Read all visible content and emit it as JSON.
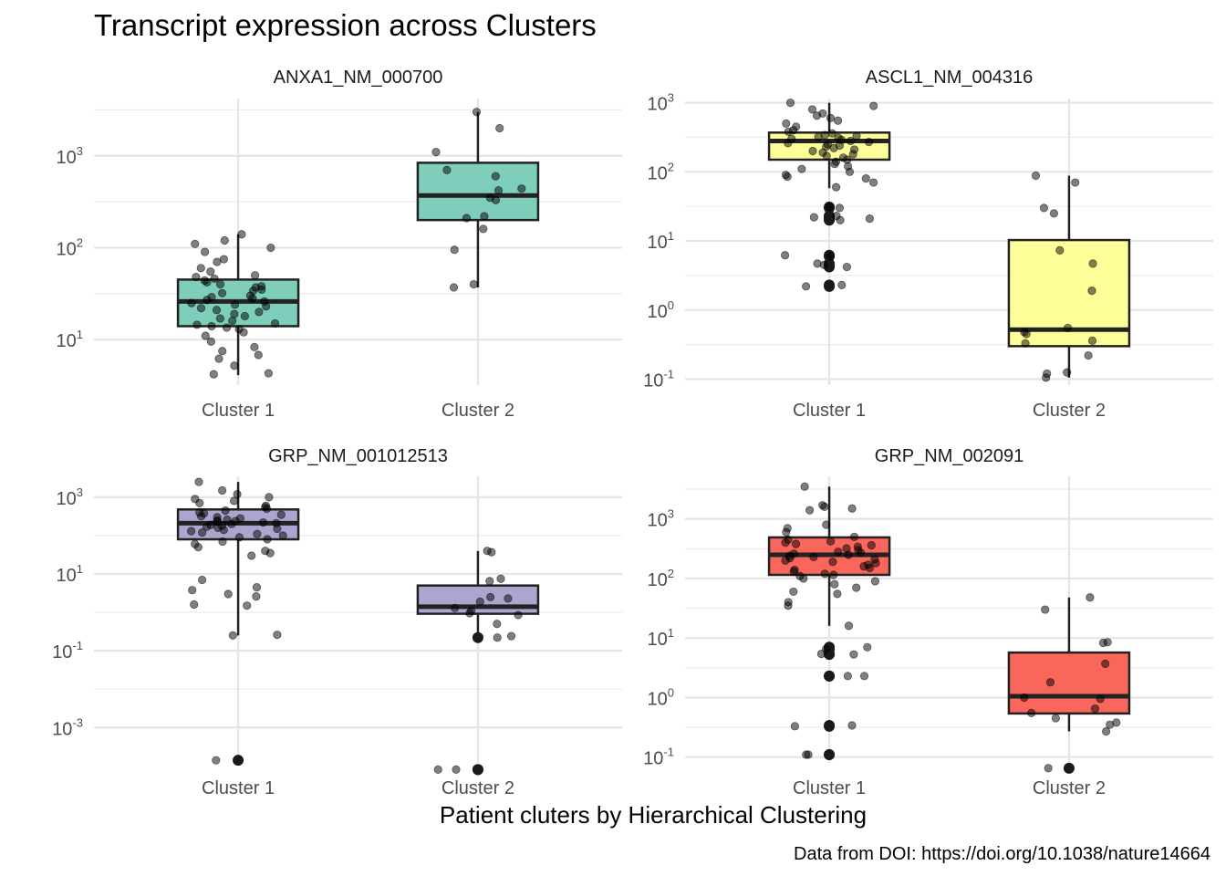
{
  "chart_data": {
    "type": "box",
    "title": "Transcript expression across Clusters",
    "xlabel": "Patient cluters by Hierarchical Clustering",
    "ylabel": "",
    "caption": "Data from DOI: https://doi.org/10.1038/nature14664",
    "y_scale": "log10",
    "categories": [
      "Cluster 1",
      "Cluster 2"
    ],
    "panels": [
      {
        "name": "ANXA1_NM_000700",
        "fill": "#7fcdbb",
        "ylim": [
          3.2,
          4200
        ],
        "y_ticks": [
          {
            "exp": "1",
            "value": 10
          },
          {
            "exp": "2",
            "value": 100
          },
          {
            "exp": "3",
            "value": 1000
          }
        ],
        "boxes": [
          {
            "category": "Cluster 1",
            "whisker_low": 4.1,
            "q1": 14,
            "median": 26,
            "q3": 45,
            "whisker_high": 140,
            "points": [
              4.2,
              4.3,
              5.2,
              6.2,
              6.8,
              7.5,
              8.3,
              9.5,
              11,
              12,
              13,
              13.5,
              14,
              14.5,
              15,
              16,
              17,
              18,
              19,
              20,
              21,
              22,
              23,
              24,
              25,
              26,
              27,
              28,
              29,
              30,
              32,
              34,
              35,
              37,
              38,
              40,
              42,
              44,
              46,
              48,
              50,
              55,
              60,
              70,
              75,
              90,
              100,
              110,
              120,
              140
            ]
          },
          {
            "category": "Cluster 2",
            "whisker_low": 37,
            "q1": 200,
            "median": 370,
            "q3": 840,
            "whisker_high": 3000,
            "points": [
              37,
              40,
              95,
              160,
              210,
              220,
              330,
              350,
              420,
              440,
              600,
              700,
              1100,
              2000,
              3000
            ]
          }
        ]
      },
      {
        "name": "ASCL1_NM_004316",
        "fill": "#ffff99",
        "ylim": [
          0.082,
          1150
        ],
        "y_ticks": [
          {
            "exp": "-1",
            "value": 0.1
          },
          {
            "exp": "0",
            "value": 1
          },
          {
            "exp": "1",
            "value": 10
          },
          {
            "exp": "2",
            "value": 100
          },
          {
            "exp": "3",
            "value": 1000
          }
        ],
        "boxes": [
          {
            "category": "Cluster 1",
            "whisker_low": 58,
            "q1": 150,
            "median": 280,
            "q3": 370,
            "whisker_high": 1000,
            "points": [
              2.2,
              2.3,
              4.2,
              4.5,
              4.7,
              6,
              6.2,
              20,
              21,
              22,
              23,
              30,
              31,
              60,
              70,
              80,
              85,
              90,
              100,
              110,
              120,
              130,
              140,
              150,
              160,
              170,
              180,
              190,
              200,
              210,
              220,
              230,
              240,
              250,
              260,
              270,
              280,
              290,
              300,
              310,
              320,
              330,
              340,
              360,
              380,
              400,
              450,
              500,
              550,
              600,
              650,
              700,
              800,
              900,
              1000
            ]
          },
          {
            "category": "Cluster 2",
            "whisker_low": 0.105,
            "q1": 0.3,
            "median": 0.52,
            "q3": 10.3,
            "whisker_high": 88,
            "points": [
              0.105,
              0.12,
              0.125,
              0.22,
              0.33,
              0.36,
              0.45,
              0.48,
              0.55,
              1.9,
              4.7,
              7.3,
              25,
              30,
              70,
              88
            ]
          }
        ]
      },
      {
        "name": "GRP_NM_001012513",
        "fill": "#aaa6d0",
        "ylim": [
          0.00012,
          3500
        ],
        "y_ticks": [
          {
            "exp": "-3",
            "value": 0.001
          },
          {
            "exp": "-1",
            "value": 0.1
          },
          {
            "exp": "1",
            "value": 10
          },
          {
            "exp": "3",
            "value": 1000
          }
        ],
        "boxes": [
          {
            "category": "Cluster 1",
            "whisker_low": 0.25,
            "q1": 80,
            "median": 210,
            "q3": 480,
            "whisker_high": 2500,
            "points": [
              0.00014,
              0.25,
              0.26,
              1.5,
              1.6,
              2.6,
              3,
              3.8,
              4.5,
              7,
              30,
              35,
              40,
              50,
              60,
              70,
              80,
              90,
              100,
              110,
              120,
              130,
              140,
              150,
              160,
              170,
              180,
              190,
              200,
              210,
              220,
              230,
              240,
              250,
              260,
              280,
              300,
              320,
              350,
              380,
              400,
              450,
              500,
              550,
              600,
              700,
              800,
              900,
              1000,
              1200,
              1500,
              2500
            ]
          },
          {
            "category": "Cluster 2",
            "whisker_low": 0.23,
            "q1": 0.92,
            "median": 1.4,
            "q3": 5,
            "whisker_high": 40,
            "points": [
              8e-05,
              8e-05,
              0.22,
              0.24,
              0.5,
              0.85,
              0.95,
              1.1,
              1.3,
              1.9,
              2.3,
              2.5,
              6.5,
              7.5,
              37,
              40
            ]
          }
        ]
      },
      {
        "name": "GRP_NM_002091",
        "fill": "#f8665c",
        "ylim": [
          0.08,
          5200
        ],
        "y_ticks": [
          {
            "exp": "-1",
            "value": 0.1
          },
          {
            "exp": "0",
            "value": 1
          },
          {
            "exp": "1",
            "value": 10
          },
          {
            "exp": "2",
            "value": 100
          },
          {
            "exp": "3",
            "value": 1000
          }
        ],
        "boxes": [
          {
            "category": "Cluster 1",
            "whisker_low": 16,
            "q1": 115,
            "median": 250,
            "q3": 490,
            "whisker_high": 3500,
            "points": [
              0.11,
              0.11,
              0.33,
              0.34,
              2.3,
              2.3,
              5.3,
              5.4,
              6.5,
              7,
              16,
              35,
              40,
              55,
              60,
              70,
              80,
              90,
              100,
              110,
              115,
              120,
              130,
              140,
              150,
              160,
              170,
              180,
              190,
              200,
              210,
              220,
              230,
              240,
              250,
              260,
              270,
              280,
              300,
              320,
              340,
              360,
              380,
              400,
              420,
              450,
              500,
              600,
              700,
              800,
              1400,
              1500,
              1600,
              1700,
              3500
            ]
          },
          {
            "category": "Cluster 2",
            "whisker_low": 0.27,
            "q1": 0.54,
            "median": 1.05,
            "q3": 5.7,
            "whisker_high": 48,
            "points": [
              0.065,
              0.27,
              0.35,
              0.38,
              0.45,
              0.55,
              0.65,
              0.95,
              1.0,
              1.8,
              3.7,
              8.3,
              8.5,
              30,
              48
            ]
          }
        ]
      }
    ]
  }
}
